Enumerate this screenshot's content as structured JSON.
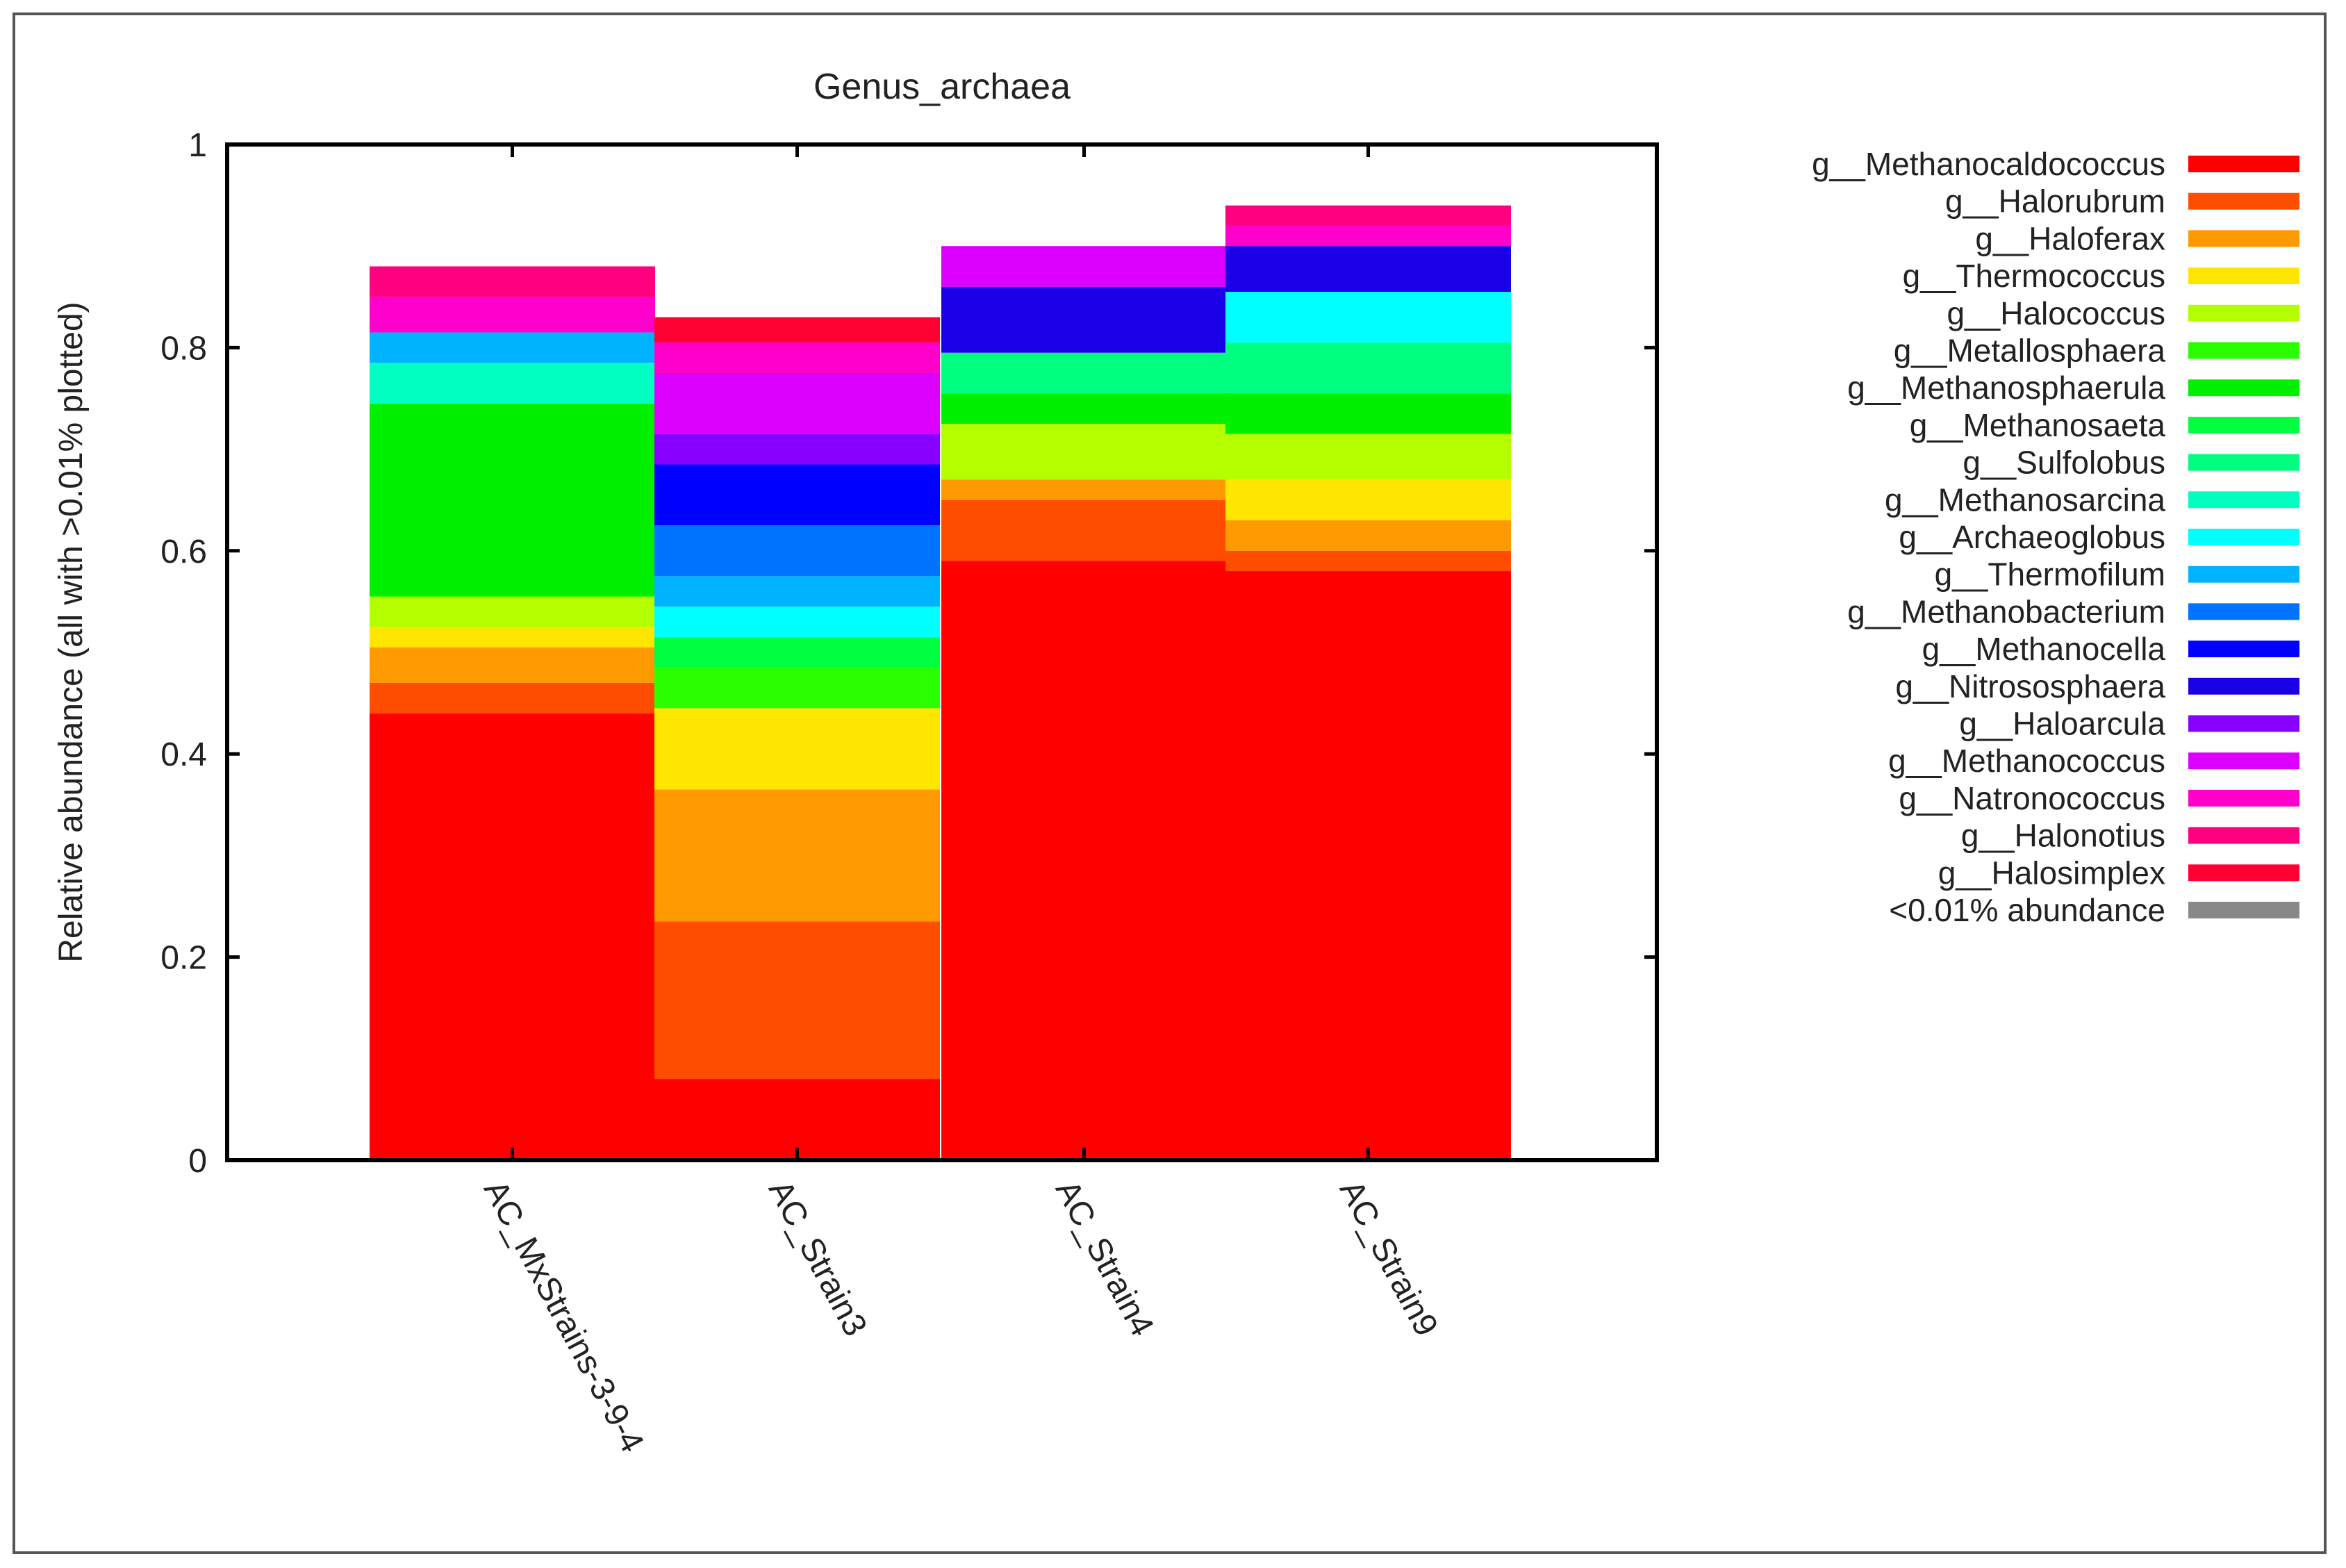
{
  "chart_data": {
    "type": "stacked-bar",
    "title": "Genus_archaea",
    "ylabel": "Relative abundance (all with >0.01% plotted)",
    "xlabel": "",
    "ylim": [
      0,
      1
    ],
    "yticks": [
      0,
      0.2,
      0.4,
      0.6,
      0.8,
      1
    ],
    "ytick_labels": [
      "0",
      "0.2",
      "0.4",
      "0.6",
      "0.8",
      "1"
    ],
    "categories": [
      "AC_MxStrains-3-9-4",
      "AC_Strain3",
      "AC_Strain4",
      "AC_Strain9"
    ],
    "legend_position": "right",
    "series": [
      {
        "name": "g__Methanocaldococcus",
        "color": "#ff0000",
        "values": [
          0.44,
          0.08,
          0.59,
          0.58
        ]
      },
      {
        "name": "g__Halorubrum",
        "color": "#ff4d00",
        "values": [
          0.03,
          0.155,
          0.06,
          0.02
        ]
      },
      {
        "name": "g__Haloferax",
        "color": "#ff9900",
        "values": [
          0.035,
          0.13,
          0.02,
          0.03
        ]
      },
      {
        "name": "g__Thermococcus",
        "color": "#ffe600",
        "values": [
          0.02,
          0.08,
          0.0,
          0.04
        ]
      },
      {
        "name": "g__Halococcus",
        "color": "#b3ff00",
        "values": [
          0.03,
          0.0,
          0.055,
          0.045
        ]
      },
      {
        "name": "g__Metallosphaera",
        "color": "#2aff00",
        "values": [
          0.0,
          0.04,
          0.0,
          0.0
        ]
      },
      {
        "name": "g__Methanosphaerula",
        "color": "#00f000",
        "values": [
          0.19,
          0.0,
          0.03,
          0.04
        ]
      },
      {
        "name": "g__Methanosaeta",
        "color": "#00ff40",
        "values": [
          0.0,
          0.03,
          0.0,
          0.0
        ]
      },
      {
        "name": "g__Sulfolobus",
        "color": "#00ff80",
        "values": [
          0.0,
          0.0,
          0.04,
          0.05
        ]
      },
      {
        "name": "g__Methanosarcina",
        "color": "#00ffc0",
        "values": [
          0.04,
          0.0,
          0.0,
          0.0
        ]
      },
      {
        "name": "g__Archaeoglobus",
        "color": "#00ffff",
        "values": [
          0.0,
          0.03,
          0.0,
          0.05
        ]
      },
      {
        "name": "g__Thermofilum",
        "color": "#00b3ff",
        "values": [
          0.03,
          0.03,
          0.0,
          0.0
        ]
      },
      {
        "name": "g__Methanobacterium",
        "color": "#0073ff",
        "values": [
          0.0,
          0.05,
          0.0,
          0.0
        ]
      },
      {
        "name": "g__Methanocella",
        "color": "#0000ff",
        "values": [
          0.0,
          0.06,
          0.0,
          0.0
        ]
      },
      {
        "name": "g__Nitrososphaera",
        "color": "#1a00e6",
        "values": [
          0.0,
          0.0,
          0.065,
          0.045
        ]
      },
      {
        "name": "g__Haloarcula",
        "color": "#8800ff",
        "values": [
          0.0,
          0.03,
          0.0,
          0.0
        ]
      },
      {
        "name": "g__Methanococcus",
        "color": "#dd00ff",
        "values": [
          0.0,
          0.06,
          0.04,
          0.0
        ]
      },
      {
        "name": "g__Natronococcus",
        "color": "#ff00cc",
        "values": [
          0.035,
          0.03,
          0.0,
          0.02
        ]
      },
      {
        "name": "g__Halonotius",
        "color": "#ff0080",
        "values": [
          0.03,
          0.0,
          0.0,
          0.02
        ]
      },
      {
        "name": "g__Halosimplex",
        "color": "#ff0033",
        "values": [
          0.0,
          0.025,
          0.0,
          0.0
        ]
      },
      {
        "name": "<0.01% abundance",
        "color": "#888888",
        "values": [
          0.0,
          0.0,
          0.0,
          0.0
        ]
      }
    ]
  }
}
